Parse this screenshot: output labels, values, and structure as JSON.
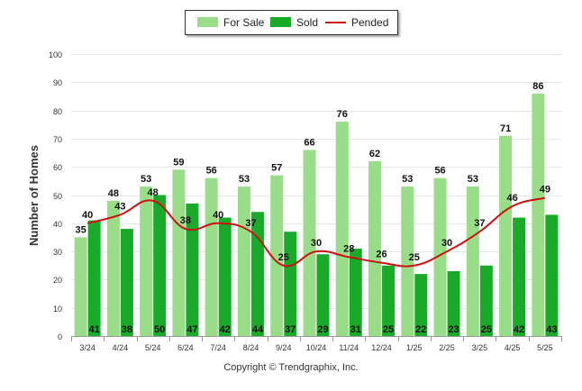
{
  "chart_data": {
    "type": "bar",
    "categories": [
      "3/24",
      "4/24",
      "5/24",
      "6/24",
      "7/24",
      "8/24",
      "9/24",
      "10/24",
      "11/24",
      "12/24",
      "1/25",
      "2/25",
      "3/25",
      "4/25",
      "5/25"
    ],
    "series": [
      {
        "name": "For Sale",
        "type": "bar",
        "color": "#99dd88",
        "values": [
          35,
          48,
          53,
          59,
          56,
          53,
          57,
          66,
          76,
          62,
          53,
          56,
          53,
          71,
          86
        ]
      },
      {
        "name": "Sold",
        "type": "bar",
        "color": "#1aaa2a",
        "values": [
          41,
          38,
          50,
          47,
          42,
          44,
          37,
          29,
          31,
          25,
          22,
          23,
          25,
          42,
          43
        ]
      },
      {
        "name": "Pended",
        "type": "line",
        "color": "#cc1111",
        "values": [
          40,
          43,
          48,
          38,
          40,
          37,
          25,
          30,
          28,
          26,
          25,
          30,
          37,
          46,
          49
        ]
      }
    ],
    "ylabel": "Number of Homes",
    "xlabel": "",
    "ylim": [
      0,
      100
    ],
    "yticks": [
      0,
      10,
      20,
      30,
      40,
      50,
      60,
      70,
      80,
      90,
      100
    ],
    "grid": true,
    "legend_position": "top-center"
  },
  "footer": {
    "copyright": "Copyright © Trendgraphix, Inc."
  },
  "colors": {
    "for_sale": "#99dd88",
    "sold": "#1aaa2a",
    "pended": "#cc1111"
  }
}
